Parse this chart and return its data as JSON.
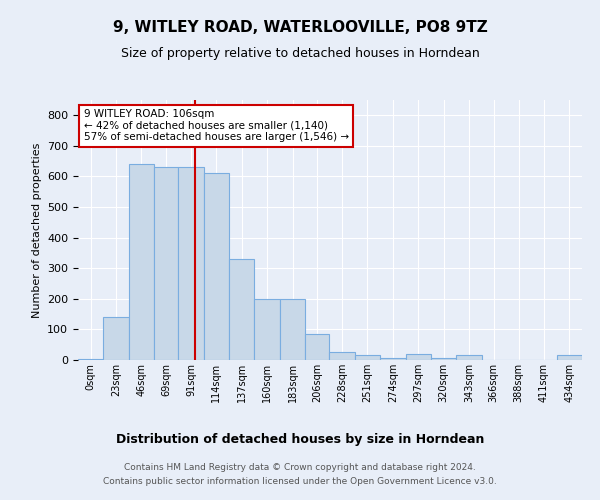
{
  "title": "9, WITLEY ROAD, WATERLOOVILLE, PO8 9TZ",
  "subtitle": "Size of property relative to detached houses in Horndean",
  "xlabel": "Distribution of detached houses by size in Horndean",
  "ylabel": "Number of detached properties",
  "footer_line1": "Contains HM Land Registry data © Crown copyright and database right 2024.",
  "footer_line2": "Contains public sector information licensed under the Open Government Licence v3.0.",
  "bin_edges": [
    0,
    23,
    46,
    69,
    91,
    114,
    137,
    160,
    183,
    206,
    228,
    251,
    274,
    297,
    320,
    343,
    366,
    388,
    411,
    434,
    457
  ],
  "bar_heights": [
    2,
    140,
    640,
    630,
    630,
    610,
    330,
    200,
    200,
    85,
    25,
    15,
    5,
    20,
    5,
    15,
    0,
    0,
    0,
    15
  ],
  "bar_color": "#c8d8e8",
  "bar_edge_color": "#7aade0",
  "property_sqm": 106,
  "property_line_color": "#cc0000",
  "annotation_line1": "9 WITLEY ROAD: 106sqm",
  "annotation_line2": "← 42% of detached houses are smaller (1,140)",
  "annotation_line3": "57% of semi-detached houses are larger (1,546) →",
  "annotation_box_color": "#ffffff",
  "annotation_box_edge": "#cc0000",
  "ylim": [
    0,
    850
  ],
  "yticks": [
    0,
    100,
    200,
    300,
    400,
    500,
    600,
    700,
    800
  ],
  "background_color": "#e8eef8",
  "plot_bg_color": "#e8eef8",
  "grid_color": "#ffffff",
  "title_fontsize": 11,
  "subtitle_fontsize": 9
}
